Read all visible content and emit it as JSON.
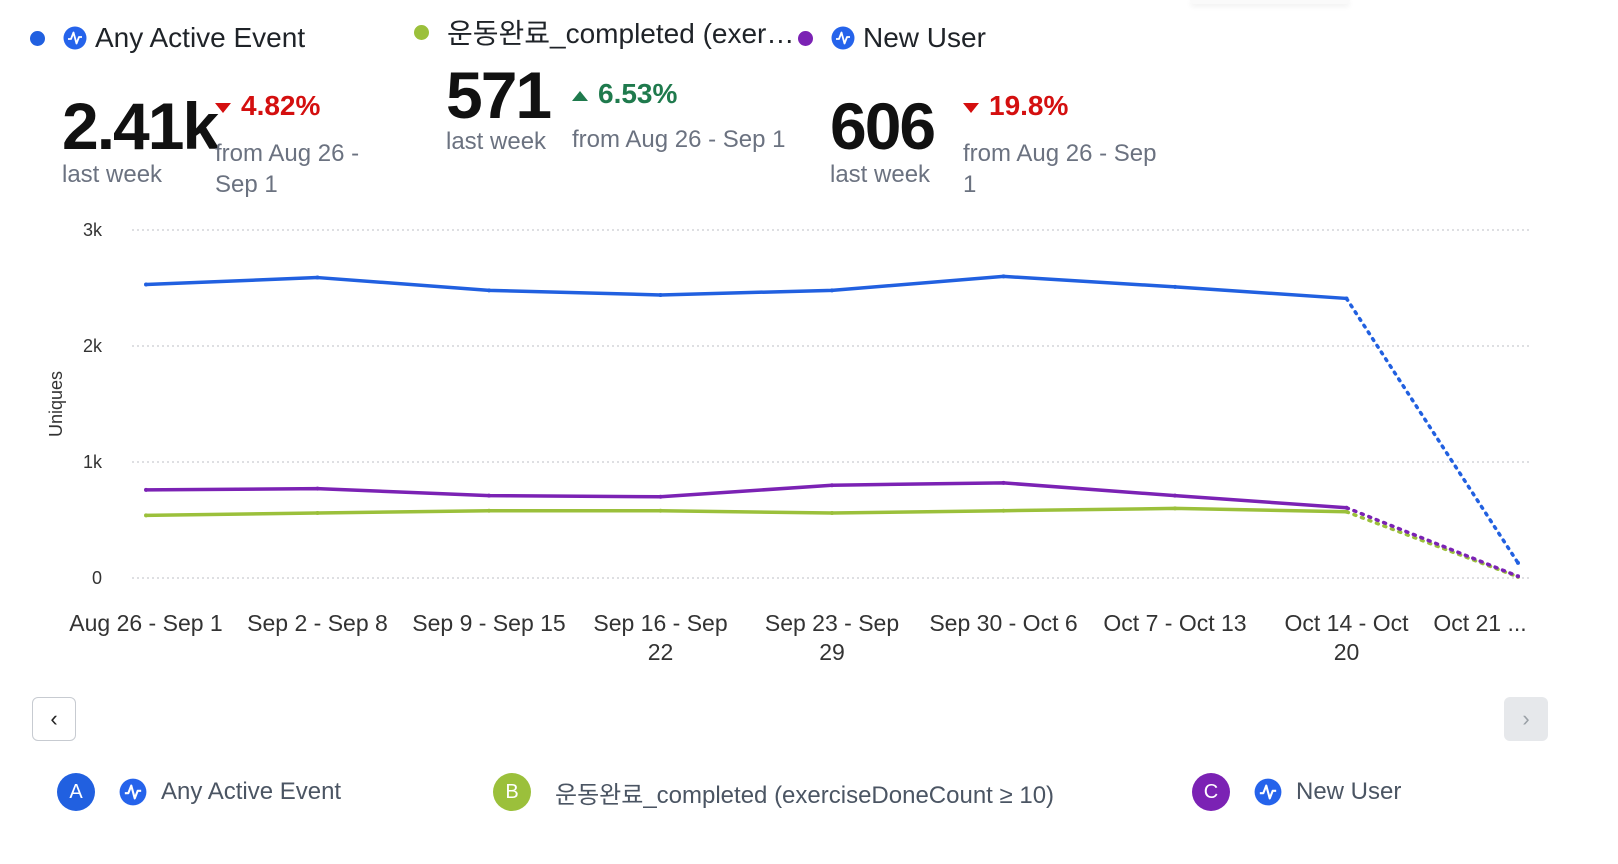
{
  "metrics": [
    {
      "name": "Any Active Event",
      "color": "#2160e0",
      "value": "2.41k",
      "period": "last week",
      "direction": "down",
      "change": "4.82%",
      "compare": "from Aug 26 - Sep 1",
      "compare_line1": "from Aug 26 -",
      "compare_line2": "Sep 1"
    },
    {
      "name": "운동완료_completed (exer…",
      "color": "#9bc03b",
      "value": "571",
      "period": "last week",
      "direction": "up",
      "change": "6.53%",
      "compare": "from Aug 26 - Sep 1"
    },
    {
      "name": "New User",
      "color": "#7b22b4",
      "value": "606",
      "period": "last week",
      "direction": "down",
      "change": "19.8%",
      "compare": "from Aug 26 - Sep 1",
      "compare_line1": "from Aug 26 - Sep",
      "compare_line2": "1"
    }
  ],
  "chart_data": {
    "type": "line",
    "ylabel": "Uniques",
    "ylim": [
      0,
      3000
    ],
    "yticks": [
      {
        "v": 0,
        "label": "0"
      },
      {
        "v": 1000,
        "label": "1k"
      },
      {
        "v": 2000,
        "label": "2k"
      },
      {
        "v": 3000,
        "label": "3k"
      }
    ],
    "categories": [
      "Aug 26 - Sep 1",
      "Sep 2 - Sep 8",
      "Sep 9 - Sep 15",
      "Sep 16 - Sep 22",
      "Sep 23 - Sep 29",
      "Sep 30 - Oct 6",
      "Oct 7 - Oct 13",
      "Oct 14 - Oct 20",
      "Oct 21 …"
    ],
    "category_lines": [
      [
        "Aug 26 - Sep 1"
      ],
      [
        "Sep 2 - Sep 8"
      ],
      [
        "Sep 9 - Sep 15"
      ],
      [
        "Sep 16 - Sep",
        "22"
      ],
      [
        "Sep 23 - Sep",
        "29"
      ],
      [
        "Sep 30 - Oct 6"
      ],
      [
        "Oct 7 - Oct 13"
      ],
      [
        "Oct 14 - Oct",
        "20"
      ],
      [
        "Oct 21 ..."
      ]
    ],
    "incomplete_last_point": true,
    "series": [
      {
        "name": "Any Active Event",
        "color": "#2160e0",
        "values": [
          2530,
          2590,
          2480,
          2440,
          2480,
          2600,
          2510,
          2410,
          130
        ]
      },
      {
        "name": "운동완료_completed (exerciseDoneCount ≥ 10)",
        "color": "#9bc03b",
        "values": [
          540,
          560,
          580,
          580,
          560,
          580,
          600,
          571,
          10
        ]
      },
      {
        "name": "New User",
        "color": "#7b22b4",
        "values": [
          760,
          770,
          710,
          700,
          800,
          820,
          710,
          606,
          15
        ]
      }
    ]
  },
  "nav": {
    "prev_icon": "chevron-left-icon",
    "prev_glyph": "‹",
    "next_icon": "chevron-right-icon",
    "next_glyph": "›"
  },
  "legend": [
    {
      "badge": "A",
      "label": "Any Active Event",
      "color": "#2160e0"
    },
    {
      "badge": "B",
      "label": "운동완료_completed (exerciseDoneCount ≥ 10)",
      "color": "#9bc03b"
    },
    {
      "badge": "C",
      "label": "New User",
      "color": "#7b22b4"
    }
  ]
}
